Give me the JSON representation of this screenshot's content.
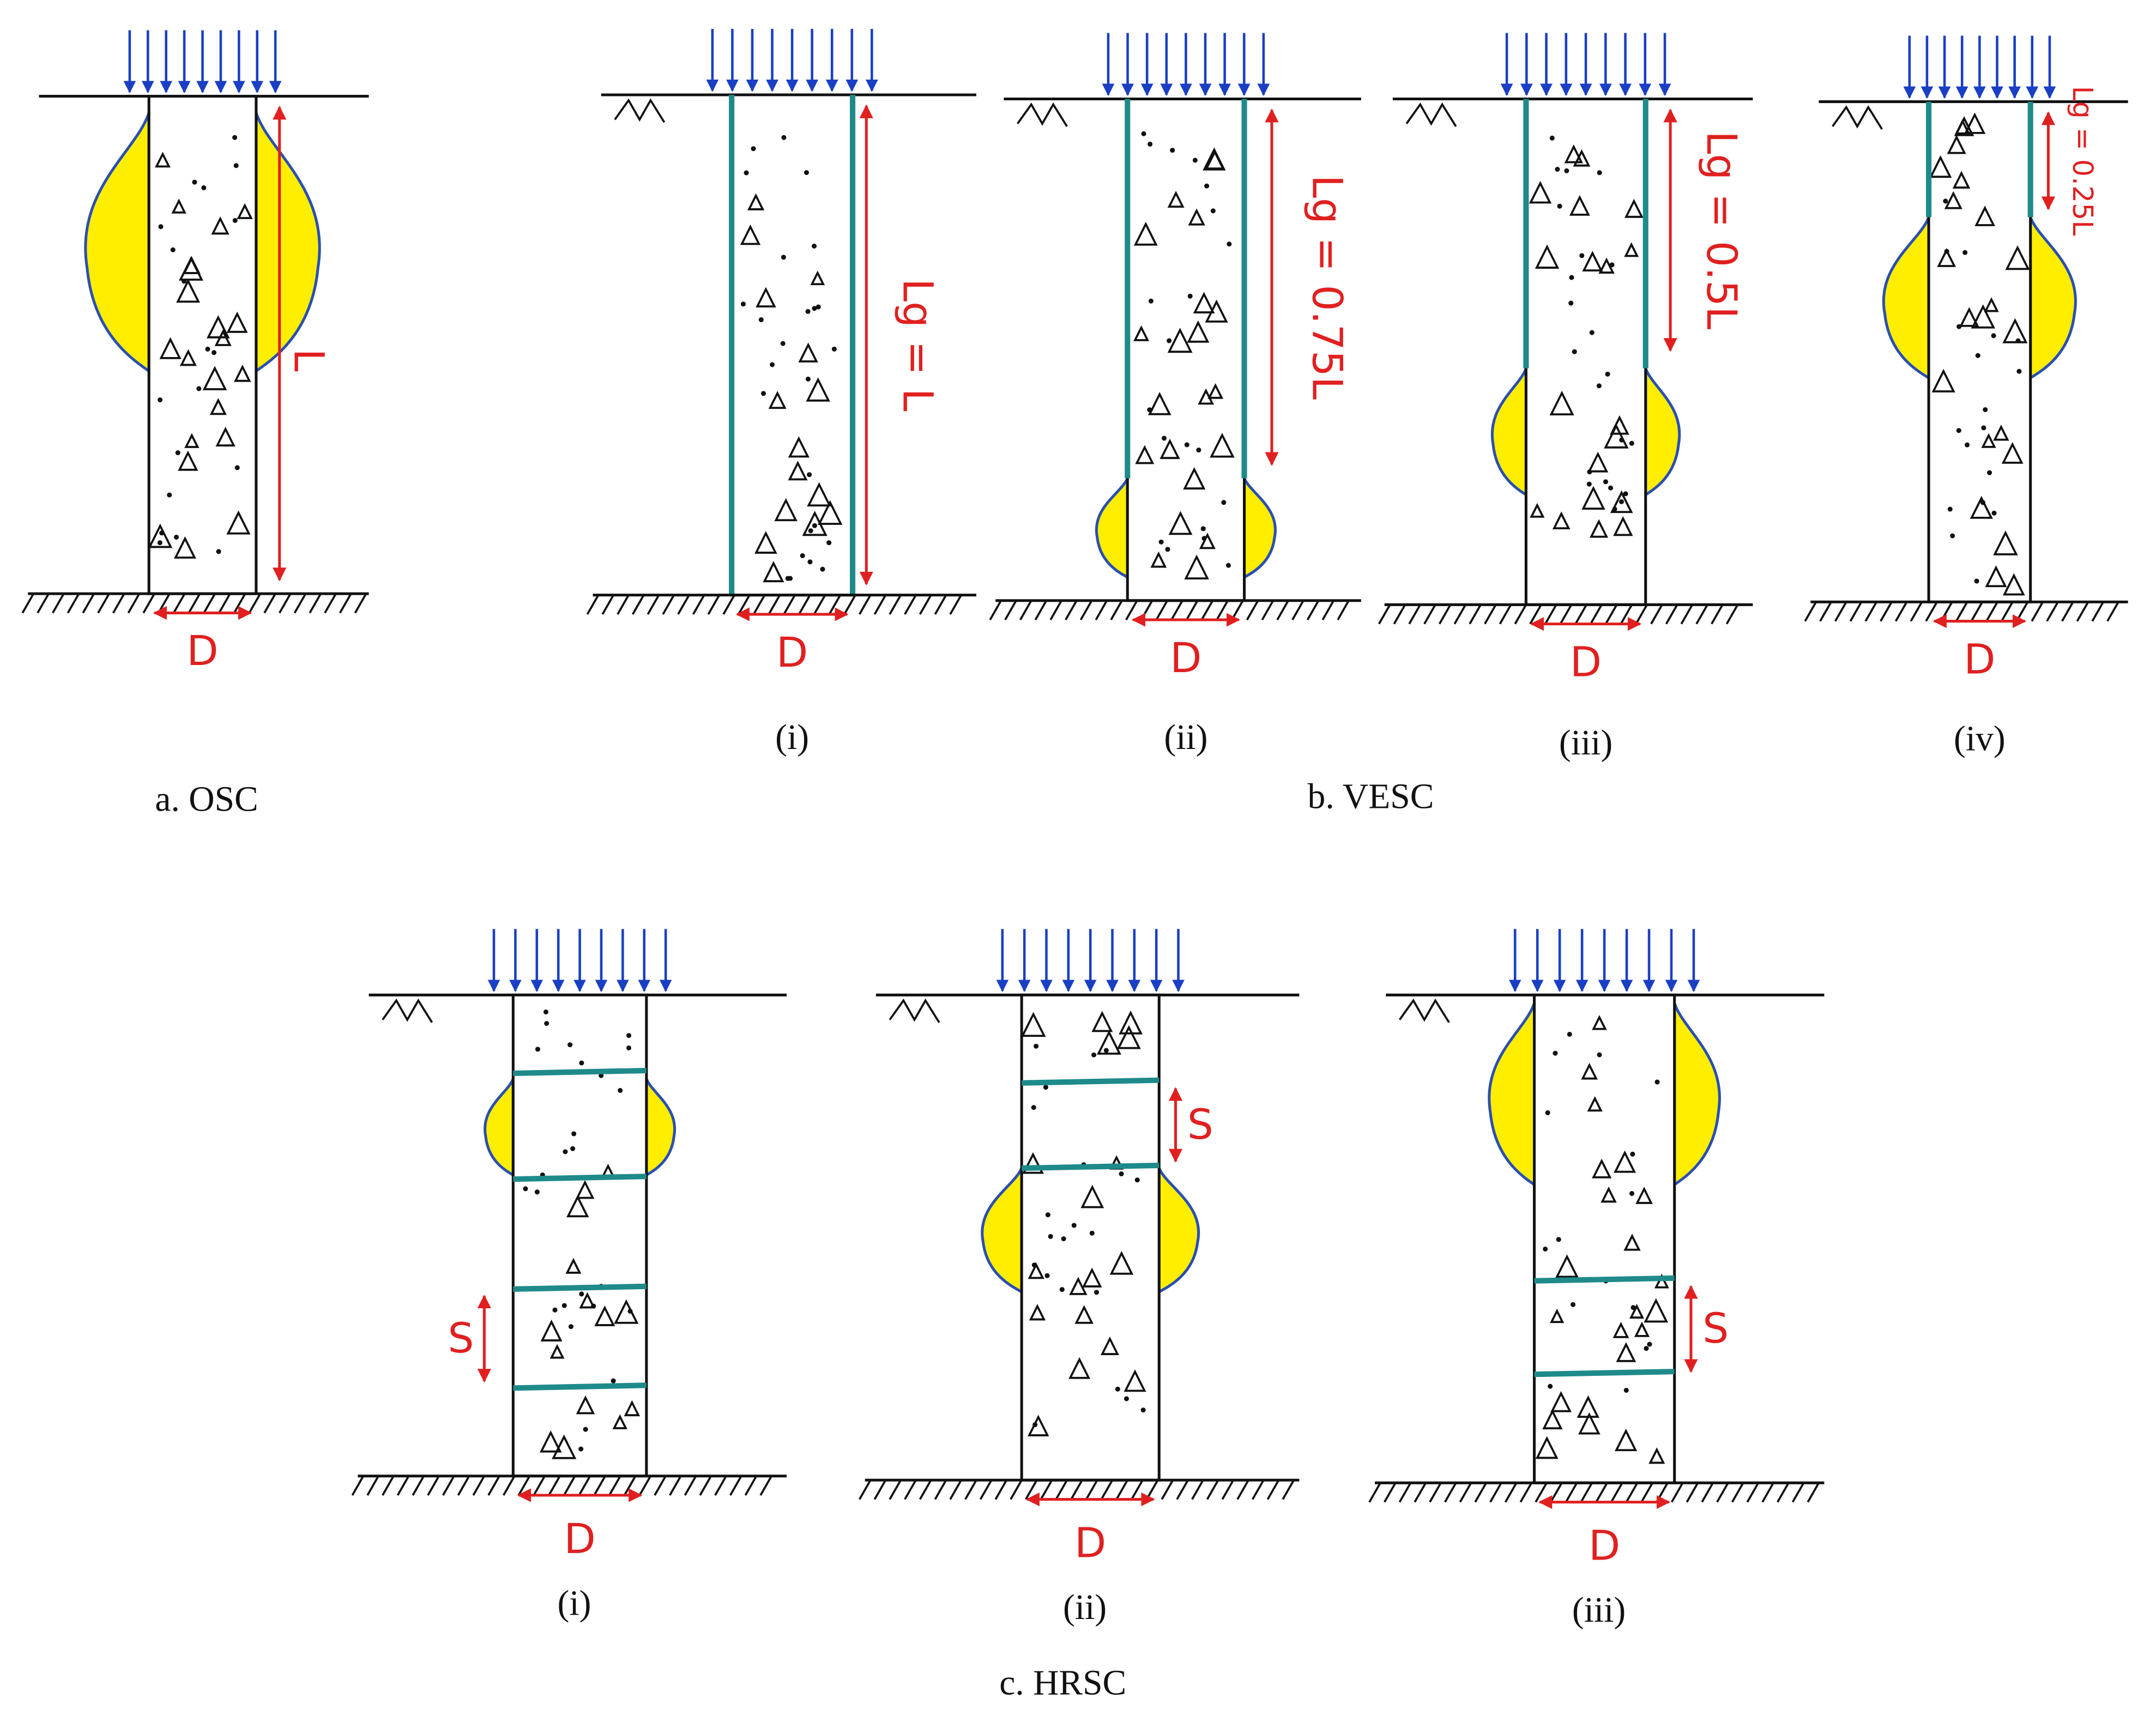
{
  "osc": {
    "caption": "a. OSC",
    "diameter": "D",
    "length": "L"
  },
  "vesc": {
    "caption": "b. VESC",
    "columns": [
      {
        "label": "(i)",
        "diameter": "D",
        "encased_length": "Lg = L"
      },
      {
        "label": "(ii)",
        "diameter": "D",
        "encased_length": "Lg = 0.75L"
      },
      {
        "label": "(iii)",
        "diameter": "D",
        "encased_length": "Lg = 0.5L"
      },
      {
        "label": "(iv)",
        "diameter": "D",
        "encased_length": "Lg = 0.25L"
      }
    ]
  },
  "hrsc": {
    "caption": "c. HRSC",
    "columns": [
      {
        "label": "(i)",
        "diameter": "D",
        "spacing": "S"
      },
      {
        "label": "(ii)",
        "diameter": "D",
        "spacing": "S"
      },
      {
        "label": "(iii)",
        "diameter": "D",
        "spacing": "S"
      }
    ]
  }
}
